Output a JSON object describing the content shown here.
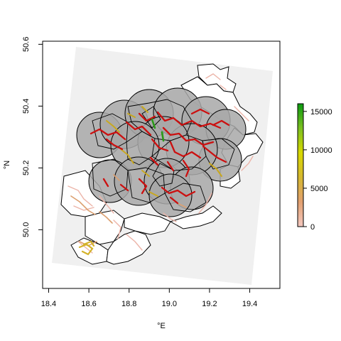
{
  "chart_data": {
    "type": "map",
    "title": "",
    "xlabel": "°E",
    "ylabel": "°N",
    "xlim": [
      18.37,
      19.55
    ],
    "ylim": [
      49.81,
      50.61
    ],
    "xticks": [
      {
        "value": 18.4,
        "label": "18.4"
      },
      {
        "value": 18.6,
        "label": "18.6"
      },
      {
        "value": 18.8,
        "label": "18.8"
      },
      {
        "value": 19.0,
        "label": "19.0"
      },
      {
        "value": 19.2,
        "label": "19.2"
      },
      {
        "value": 19.4,
        "label": "19.4"
      }
    ],
    "yticks": [
      {
        "value": 50.0,
        "label": "50.0"
      },
      {
        "value": 50.2,
        "label": "50.2"
      },
      {
        "value": 50.4,
        "label": "50.4"
      },
      {
        "value": 50.6,
        "label": "50.6"
      }
    ],
    "colorbar": {
      "min": 0,
      "max": 16000,
      "ticks": [
        {
          "value": 0,
          "label": "0"
        },
        {
          "value": 5000,
          "label": "5000"
        },
        {
          "value": 10000,
          "label": "10000"
        },
        {
          "value": 15000,
          "label": "15000"
        }
      ],
      "colors": [
        "#f4c8c0",
        "#e2a070",
        "#d6b830",
        "#d8d800",
        "#7cc020",
        "#0a9a10"
      ]
    },
    "background_extent_color": "#f0f0f0",
    "buffer_fill_color": "#a8a8a8",
    "road_colors": {
      "low": "#ecb4a8",
      "medium": "#dca070",
      "high": "#d4b22a",
      "dense": "#cc1010",
      "peak": "#2a9a18"
    }
  }
}
